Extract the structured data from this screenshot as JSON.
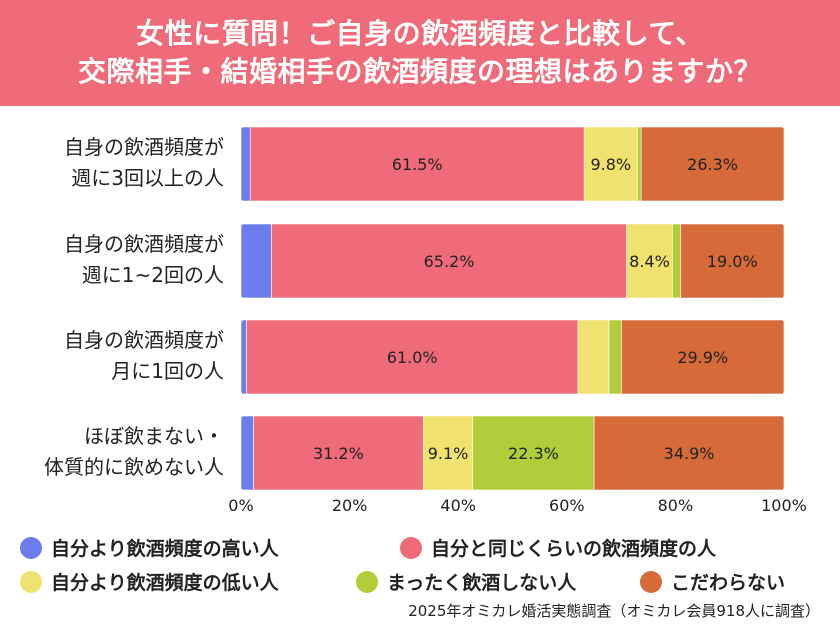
{
  "title": {
    "line1": "女性に質問！ご自身の飲酒頻度と比較して、",
    "line2": "交際相手・結婚相手の飲酒頻度の理想はありますか？"
  },
  "chart_data": {
    "type": "bar",
    "orientation": "horizontal",
    "stacked": true,
    "categories": [
      [
        "自身の飲酒頻度が",
        "週に3回以上の人"
      ],
      [
        "自身の飲酒頻度が",
        "週に1~2回の人"
      ],
      [
        "自身の飲酒頻度が",
        "月に1回の人"
      ],
      [
        "ほぼ飲まない・",
        "体質的に飲めない人"
      ]
    ],
    "series": [
      {
        "name": "自分より飲酒頻度の高い人",
        "color": "#6b7ded",
        "values": [
          1.7,
          5.6,
          1.0,
          2.3
        ],
        "labels": [
          "",
          "",
          "",
          ""
        ]
      },
      {
        "name": "自分と同じくらいの飲酒頻度の人",
        "color": "#ef6b7a",
        "values": [
          61.5,
          65.2,
          61.0,
          31.2
        ],
        "labels": [
          "61.5%",
          "65.2%",
          "61.0%",
          "31.2%"
        ]
      },
      {
        "name": "自分より飲酒頻度の低い人",
        "color": "#f0e26e",
        "values": [
          9.8,
          8.4,
          5.7,
          9.1
        ],
        "labels": [
          "9.8%",
          "8.4%",
          "",
          "9.1%"
        ]
      },
      {
        "name": "まったく飲酒しない人",
        "color": "#b2cd3a",
        "values": [
          0.7,
          1.5,
          2.3,
          22.3
        ],
        "labels": [
          "",
          "",
          "",
          "22.3%"
        ]
      },
      {
        "name": "こだわらない",
        "color": "#d66a38",
        "values": [
          26.3,
          19.0,
          29.9,
          34.9
        ],
        "labels": [
          "26.3%",
          "19.0%",
          "29.9%",
          "34.9%"
        ]
      }
    ],
    "xlim": [
      0,
      100
    ],
    "xticks": [
      "0%",
      "20%",
      "40%",
      "60%",
      "80%",
      "100%"
    ],
    "legend_position": "bottom"
  },
  "source": "2025年オミカレ婚活実態調査（オミカレ会員918人に調査）"
}
